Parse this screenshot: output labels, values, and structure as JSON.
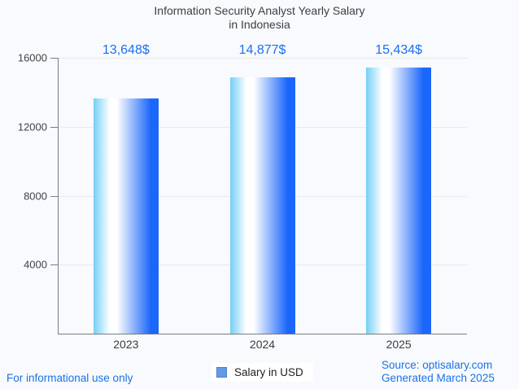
{
  "title": {
    "line1": "Information Security Analyst Yearly Salary",
    "line2": "in Indonesia"
  },
  "chart_data": {
    "type": "bar",
    "categories": [
      "2023",
      "2024",
      "2025"
    ],
    "series": [
      {
        "name": "Salary in USD",
        "values": [
          13648,
          14877,
          15434
        ]
      }
    ],
    "value_labels": [
      "13,648$",
      "14,877$",
      "15,434$"
    ],
    "title": "Information Security Analyst Yearly Salary in Indonesia",
    "xlabel": "",
    "ylabel": "",
    "ylim": [
      0,
      16000
    ],
    "yticks": [
      4000,
      8000,
      12000,
      16000
    ],
    "grid": true,
    "legend_position": "bottom"
  },
  "legend": {
    "label": "Salary in USD"
  },
  "footer": {
    "disclaimer": "For informational use only",
    "source": "Source: optisalary.com",
    "generated": "Generated March 2025"
  },
  "colors": {
    "background": "#f8fafd",
    "title_text": "#3d4043",
    "tick_label": "#3f4246",
    "category_label": "#3a3d41",
    "axis_line": "#797d82",
    "gridline": "#e7e9ec",
    "value_label": "#1a6ff2",
    "footer_text": "#1a73e8",
    "legend_text": "#202124",
    "legend_bg": "#ffffff",
    "legend_swatch_fill": "#6499e8",
    "legend_swatch_border": "#4b80d2",
    "bar_gradient_left": "#74cff5",
    "bar_gradient_mid": "#ffffff",
    "bar_gradient_right": "#1b66fb"
  }
}
